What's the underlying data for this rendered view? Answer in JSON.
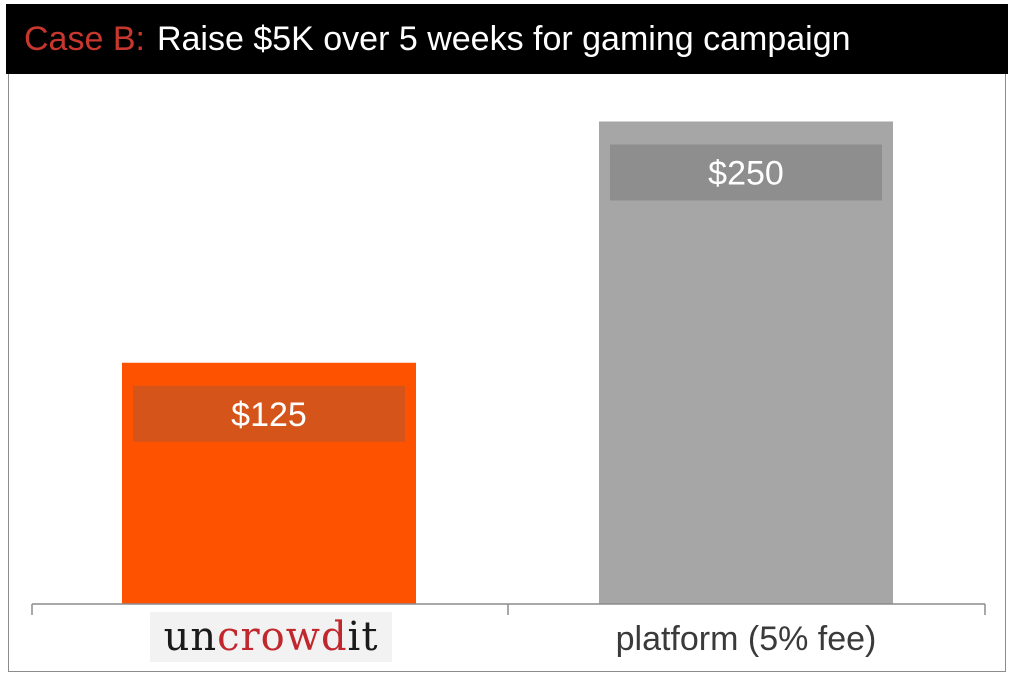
{
  "header": {
    "prefix": "Case B:",
    "title": "Raise $5K over 5 weeks for gaming campaign"
  },
  "logo": {
    "part1": "un",
    "part2": "crowd",
    "part3": "it"
  },
  "colors": {
    "uncrowdit_bar": "#ff5200",
    "uncrowdit_label_box": "#d4541a",
    "platform_bar": "#a6a6a6",
    "platform_label_box": "#8e8e8e",
    "axis": "#8c8c8c",
    "label_text": "#ffffff",
    "category_text": "#3a3a3a"
  },
  "chart_data": {
    "type": "bar",
    "title": "Raise $5K over 5 weeks for gaming campaign",
    "categories": [
      "uncrowdit",
      "platform (5% fee)"
    ],
    "values": [
      125,
      250
    ],
    "data_labels": [
      "$125",
      "$250"
    ],
    "xlabel": "",
    "ylabel": "",
    "ylim": [
      0,
      260
    ],
    "grid": false,
    "legend": "none"
  }
}
